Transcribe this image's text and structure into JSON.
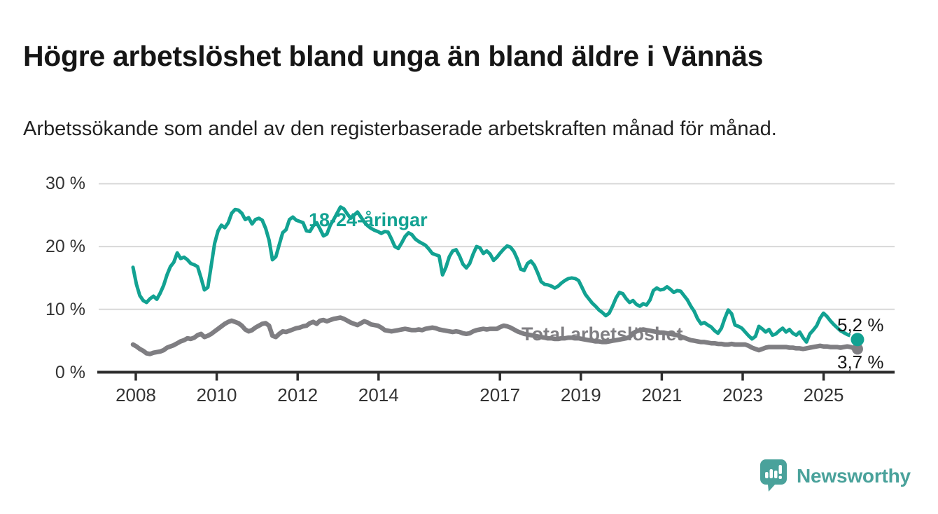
{
  "title": "Högre arbetslöshet bland unga än bland äldre i Vännäs",
  "subtitle": "Arbetssökande som andel av den registerbaserade arbetskraften månad för månad.",
  "chart_data": {
    "type": "line",
    "unit": "%",
    "frequency": "monthly",
    "x_start": "2008-01",
    "x_end": "2025-10",
    "ylim": [
      0,
      30
    ],
    "grid": true,
    "colors": {
      "young": "#12a292",
      "total": "#7f7e82",
      "gridline": "#d8d8d8",
      "axis": "#2e2e2e",
      "axis_text": "#333333",
      "end_label_text": "#161616"
    },
    "y_ticks": [
      {
        "value": 30,
        "label": "30 %"
      },
      {
        "value": 20,
        "label": "20 %"
      },
      {
        "value": 10,
        "label": "10 %"
      },
      {
        "value": 0,
        "label": "0 %"
      }
    ],
    "x_ticks": [
      {
        "year": 2008,
        "label": "2008"
      },
      {
        "year": 2010,
        "label": "2010"
      },
      {
        "year": 2012,
        "label": "2012"
      },
      {
        "year": 2014,
        "label": "2014"
      },
      {
        "year": 2017,
        "label": "2017"
      },
      {
        "year": 2019,
        "label": "2019"
      },
      {
        "year": 2021,
        "label": "2021"
      },
      {
        "year": 2023,
        "label": "2023"
      },
      {
        "year": 2025,
        "label": "2025"
      }
    ],
    "series": [
      {
        "name": "18-24-åringar",
        "color": "#12a292",
        "end_label": "5,2 %",
        "end_value": 5.2,
        "dashed_from_index": 209,
        "values": [
          16.7,
          14.0,
          12.2,
          11.4,
          11.1,
          11.7,
          12.1,
          11.6,
          12.6,
          13.8,
          15.5,
          16.8,
          17.5,
          19.0,
          18.1,
          18.3,
          17.9,
          17.3,
          17.1,
          16.8,
          15.0,
          13.1,
          13.5,
          17.0,
          20.5,
          22.5,
          23.4,
          23.0,
          23.8,
          25.3,
          25.9,
          25.8,
          25.3,
          24.3,
          24.6,
          23.6,
          24.3,
          24.5,
          24.2,
          22.9,
          21.0,
          17.9,
          18.4,
          20.3,
          22.2,
          22.7,
          24.3,
          24.7,
          24.2,
          24.0,
          23.8,
          22.5,
          22.4,
          23.3,
          23.8,
          22.8,
          21.7,
          22.0,
          23.4,
          24.3,
          25.3,
          26.3,
          26.0,
          25.2,
          24.5,
          25.0,
          25.5,
          24.7,
          23.9,
          23.3,
          22.9,
          22.6,
          22.4,
          22.1,
          22.4,
          22.3,
          21.2,
          20.0,
          19.7,
          20.6,
          21.6,
          22.2,
          21.9,
          21.2,
          20.8,
          20.5,
          20.2,
          19.6,
          18.9,
          18.7,
          18.5,
          15.5,
          16.7,
          18.4,
          19.3,
          19.5,
          18.5,
          17.2,
          16.6,
          17.3,
          18.8,
          20.0,
          19.8,
          18.9,
          19.3,
          18.8,
          17.8,
          18.3,
          19.0,
          19.6,
          20.1,
          19.9,
          19.2,
          18.0,
          16.4,
          16.2,
          17.3,
          17.7,
          17.0,
          15.8,
          14.4,
          14.0,
          13.9,
          13.7,
          13.4,
          13.7,
          14.2,
          14.6,
          14.9,
          15.0,
          14.9,
          14.6,
          13.5,
          12.4,
          11.7,
          11.0,
          10.5,
          9.9,
          9.5,
          9.0,
          9.4,
          10.5,
          11.8,
          12.7,
          12.5,
          11.7,
          11.1,
          11.4,
          10.8,
          10.5,
          10.9,
          10.7,
          11.5,
          13.0,
          13.4,
          13.1,
          13.2,
          13.6,
          13.2,
          12.7,
          13.0,
          12.9,
          12.2,
          11.5,
          10.5,
          9.7,
          8.5,
          7.7,
          7.9,
          7.5,
          7.2,
          6.6,
          6.2,
          7.0,
          8.6,
          9.9,
          9.3,
          7.5,
          7.3,
          7.0,
          6.4,
          5.8,
          5.3,
          5.7,
          7.3,
          6.9,
          6.4,
          6.8,
          5.9,
          6.1,
          6.6,
          7.0,
          6.4,
          6.8,
          6.2,
          5.9,
          6.4,
          5.5,
          4.8,
          6.1,
          6.7,
          7.4,
          8.6,
          9.4,
          8.9,
          8.2,
          7.6,
          7.1,
          6.6,
          6.3,
          6.0,
          5.8,
          5.5,
          5.2
        ]
      },
      {
        "name": "Total arbetslöshet",
        "color": "#7f7e82",
        "end_label": "3,7 %",
        "end_value": 3.7,
        "values": [
          4.4,
          4.1,
          3.7,
          3.4,
          3.0,
          2.9,
          3.1,
          3.2,
          3.3,
          3.5,
          3.9,
          4.1,
          4.3,
          4.6,
          4.9,
          5.1,
          5.4,
          5.3,
          5.5,
          5.9,
          6.1,
          5.6,
          5.8,
          6.1,
          6.5,
          6.9,
          7.3,
          7.7,
          8.0,
          8.2,
          8.0,
          7.8,
          7.4,
          6.8,
          6.5,
          6.7,
          7.1,
          7.4,
          7.7,
          7.8,
          7.4,
          5.8,
          5.6,
          6.1,
          6.5,
          6.4,
          6.6,
          6.8,
          7.0,
          7.1,
          7.3,
          7.4,
          7.8,
          8.0,
          7.7,
          8.2,
          8.3,
          8.1,
          8.3,
          8.5,
          8.6,
          8.7,
          8.5,
          8.2,
          7.9,
          7.7,
          7.5,
          7.8,
          8.1,
          7.9,
          7.6,
          7.5,
          7.4,
          7.1,
          6.7,
          6.6,
          6.5,
          6.6,
          6.7,
          6.8,
          6.9,
          6.8,
          6.7,
          6.7,
          6.8,
          6.7,
          6.9,
          7.0,
          7.1,
          7.0,
          6.8,
          6.7,
          6.6,
          6.5,
          6.4,
          6.5,
          6.4,
          6.2,
          6.1,
          6.2,
          6.5,
          6.7,
          6.8,
          6.9,
          6.8,
          6.9,
          6.9,
          6.9,
          7.2,
          7.4,
          7.3,
          7.1,
          6.8,
          6.5,
          6.3,
          6.1,
          6.0,
          5.9,
          5.8,
          5.7,
          5.6,
          5.5,
          5.4,
          5.4,
          5.3,
          5.3,
          5.4,
          5.4,
          5.5,
          5.5,
          5.4,
          5.4,
          5.3,
          5.2,
          5.1,
          5.0,
          4.9,
          4.9,
          4.8,
          4.8,
          4.9,
          5.0,
          5.1,
          5.2,
          5.3,
          5.4,
          5.6,
          6.2,
          6.5,
          6.7,
          6.8,
          6.7,
          6.6,
          6.5,
          6.4,
          6.3,
          6.3,
          6.2,
          6.1,
          6.0,
          5.9,
          5.7,
          5.5,
          5.3,
          5.1,
          5.0,
          4.9,
          4.8,
          4.8,
          4.7,
          4.6,
          4.6,
          4.5,
          4.5,
          4.4,
          4.4,
          4.5,
          4.4,
          4.4,
          4.4,
          4.4,
          4.2,
          3.9,
          3.7,
          3.5,
          3.7,
          3.9,
          4.0,
          4.0,
          4.0,
          4.0,
          4.0,
          4.0,
          3.9,
          3.9,
          3.8,
          3.8,
          3.7,
          3.8,
          3.9,
          4.0,
          4.1,
          4.2,
          4.1,
          4.1,
          4.0,
          4.0,
          4.0,
          3.9,
          4.0,
          4.1,
          4.0,
          3.8,
          3.7
        ]
      }
    ]
  },
  "logo": {
    "text": "Newsworthy",
    "icon": "newsworthy-bubble-barchart-icon",
    "color": "#4aa29b"
  }
}
